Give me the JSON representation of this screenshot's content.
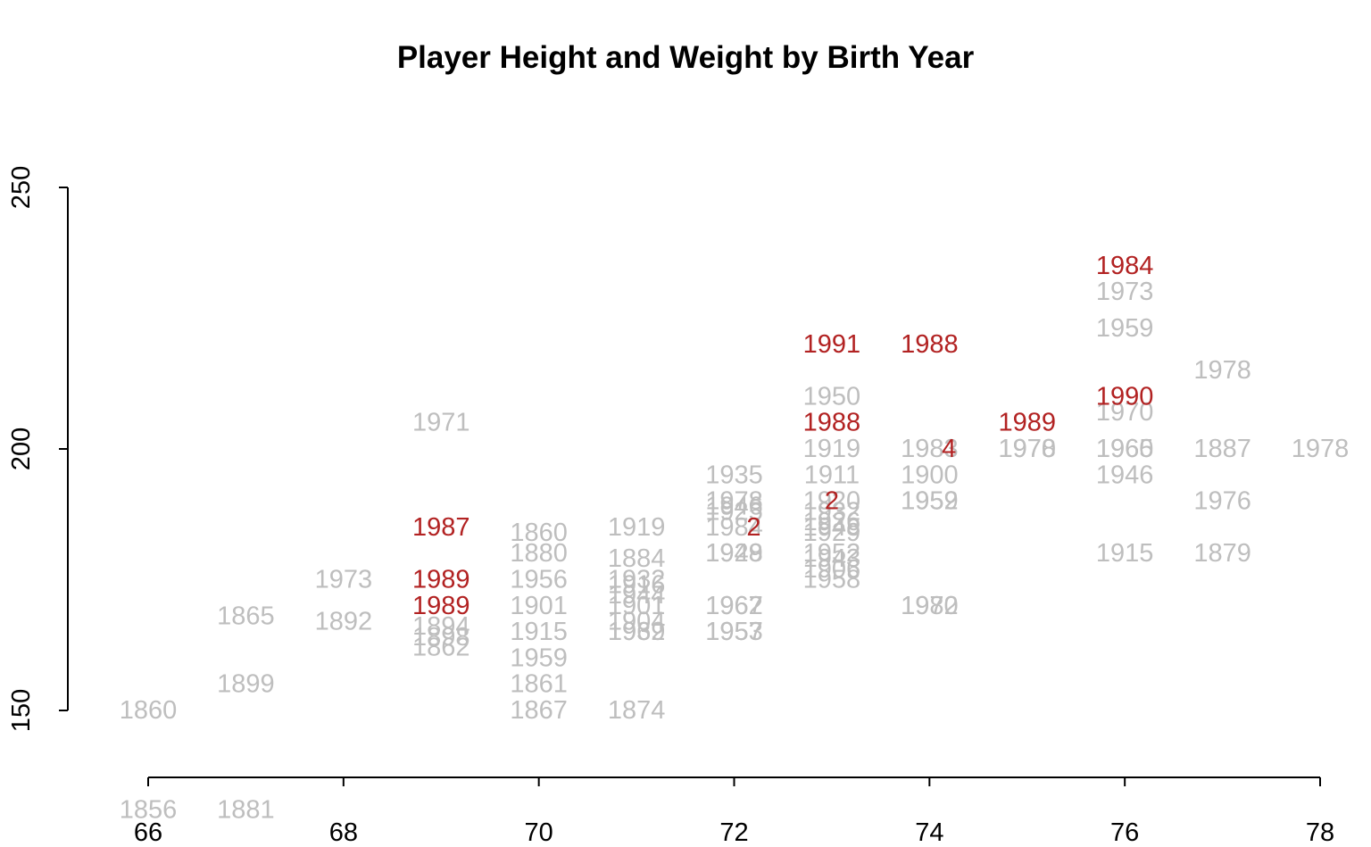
{
  "chart_data": {
    "type": "scatter",
    "title": "Player Height and Weight by Birth Year",
    "xlabel": "",
    "ylabel": "",
    "xlim": [
      66,
      78
    ],
    "ylim": [
      150,
      250
    ],
    "x_ticks": [
      "66",
      "68",
      "70",
      "72",
      "74",
      "76",
      "78"
    ],
    "y_ticks": [
      "150",
      "200",
      "250"
    ],
    "grid": false,
    "legend": "none",
    "colors": {
      "recent": "#b22222",
      "older": "#bebebe"
    },
    "point_labels": "birth year",
    "series": [
      {
        "color": "#bebebe",
        "points": [
          {
            "x": 66,
            "y": 150,
            "label": "1860"
          },
          {
            "x": 66,
            "y": 131,
            "label": "1856"
          },
          {
            "x": 67,
            "y": 131,
            "label": "1881"
          },
          {
            "x": 67,
            "y": 155,
            "label": "1899"
          },
          {
            "x": 67,
            "y": 168,
            "label": "1865"
          },
          {
            "x": 68,
            "y": 175,
            "label": "1973"
          },
          {
            "x": 68,
            "y": 167,
            "label": "1892"
          },
          {
            "x": 69,
            "y": 205,
            "label": "1971"
          },
          {
            "x": 69,
            "y": 166,
            "label": "1894"
          },
          {
            "x": 69,
            "y": 164,
            "label": "1898"
          },
          {
            "x": 69,
            "y": 162,
            "label": "1862"
          },
          {
            "x": 70,
            "y": 184,
            "label": "1860"
          },
          {
            "x": 70,
            "y": 180,
            "label": "1880"
          },
          {
            "x": 70,
            "y": 175,
            "label": "1956"
          },
          {
            "x": 70,
            "y": 170,
            "label": "1901"
          },
          {
            "x": 70,
            "y": 165,
            "label": "1915"
          },
          {
            "x": 70,
            "y": 160,
            "label": "1959"
          },
          {
            "x": 70,
            "y": 155,
            "label": "1861"
          },
          {
            "x": 70,
            "y": 150,
            "label": "1867"
          },
          {
            "x": 71,
            "y": 185,
            "label": "1919"
          },
          {
            "x": 71,
            "y": 179,
            "label": "1884"
          },
          {
            "x": 71,
            "y": 175,
            "label": "1932"
          },
          {
            "x": 71,
            "y": 174,
            "label": "1916"
          },
          {
            "x": 71,
            "y": 172,
            "label": "1944"
          },
          {
            "x": 71,
            "y": 170,
            "label": "1901"
          },
          {
            "x": 71,
            "y": 167,
            "label": "1904"
          },
          {
            "x": 71,
            "y": 165,
            "label": "1939"
          },
          {
            "x": 71,
            "y": 165,
            "label": "1962"
          },
          {
            "x": 71,
            "y": 150,
            "label": "1874"
          },
          {
            "x": 72,
            "y": 195,
            "label": "1935"
          },
          {
            "x": 72,
            "y": 190,
            "label": "1978"
          },
          {
            "x": 72,
            "y": 189,
            "label": "1946"
          },
          {
            "x": 72,
            "y": 188,
            "label": "1925"
          },
          {
            "x": 72,
            "y": 185,
            "label": "1984"
          },
          {
            "x": 72,
            "y": 180,
            "label": "1928"
          },
          {
            "x": 72,
            "y": 180,
            "label": "1949"
          },
          {
            "x": 72,
            "y": 170,
            "label": "1962"
          },
          {
            "x": 72,
            "y": 170,
            "label": "1967"
          },
          {
            "x": 72,
            "y": 165,
            "label": "1953"
          },
          {
            "x": 72,
            "y": 165,
            "label": "1957"
          },
          {
            "x": 73,
            "y": 210,
            "label": "1950"
          },
          {
            "x": 73,
            "y": 200,
            "label": "1919"
          },
          {
            "x": 73,
            "y": 195,
            "label": "1911"
          },
          {
            "x": 73,
            "y": 190,
            "label": "1920"
          },
          {
            "x": 73,
            "y": 188,
            "label": "1932"
          },
          {
            "x": 73,
            "y": 186,
            "label": "1926"
          },
          {
            "x": 73,
            "y": 185,
            "label": "1948"
          },
          {
            "x": 73,
            "y": 184,
            "label": "1929"
          },
          {
            "x": 73,
            "y": 180,
            "label": "1952"
          },
          {
            "x": 73,
            "y": 179,
            "label": "1943"
          },
          {
            "x": 73,
            "y": 177,
            "label": "1906"
          },
          {
            "x": 73,
            "y": 175,
            "label": "1958"
          },
          {
            "x": 74,
            "y": 200,
            "label": "1983"
          },
          {
            "x": 74,
            "y": 195,
            "label": "1900"
          },
          {
            "x": 74,
            "y": 190,
            "label": "1952"
          },
          {
            "x": 74,
            "y": 190,
            "label": "1959"
          },
          {
            "x": 74,
            "y": 170,
            "label": "1970"
          },
          {
            "x": 74,
            "y": 170,
            "label": "1982"
          },
          {
            "x": 75,
            "y": 200,
            "label": "1970"
          },
          {
            "x": 75,
            "y": 200,
            "label": "1978"
          },
          {
            "x": 76,
            "y": 230,
            "label": "1973"
          },
          {
            "x": 76,
            "y": 223,
            "label": "1959"
          },
          {
            "x": 76,
            "y": 207,
            "label": "1970"
          },
          {
            "x": 76,
            "y": 200,
            "label": "1965"
          },
          {
            "x": 76,
            "y": 200,
            "label": "1960"
          },
          {
            "x": 76,
            "y": 195,
            "label": "1946"
          },
          {
            "x": 76,
            "y": 180,
            "label": "1915"
          },
          {
            "x": 77,
            "y": 215,
            "label": "1978"
          },
          {
            "x": 77,
            "y": 200,
            "label": "1887"
          },
          {
            "x": 77,
            "y": 190,
            "label": "1976"
          },
          {
            "x": 77,
            "y": 180,
            "label": "1879"
          },
          {
            "x": 78,
            "y": 200,
            "label": "1978"
          }
        ]
      },
      {
        "color": "#b22222",
        "points": [
          {
            "x": 69,
            "y": 185,
            "label": "1987"
          },
          {
            "x": 69,
            "y": 175,
            "label": "1989"
          },
          {
            "x": 69,
            "y": 170,
            "label": "1989"
          },
          {
            "x": 72.2,
            "y": 185,
            "label": "2"
          },
          {
            "x": 73,
            "y": 220,
            "label": "1991"
          },
          {
            "x": 73,
            "y": 205,
            "label": "1988"
          },
          {
            "x": 73,
            "y": 190,
            "label": "2"
          },
          {
            "x": 74,
            "y": 220,
            "label": "1988"
          },
          {
            "x": 74.2,
            "y": 200,
            "label": "4"
          },
          {
            "x": 75,
            "y": 205,
            "label": "1989"
          },
          {
            "x": 76,
            "y": 235,
            "label": "1984"
          },
          {
            "x": 76,
            "y": 210,
            "label": "1990"
          }
        ]
      }
    ]
  }
}
